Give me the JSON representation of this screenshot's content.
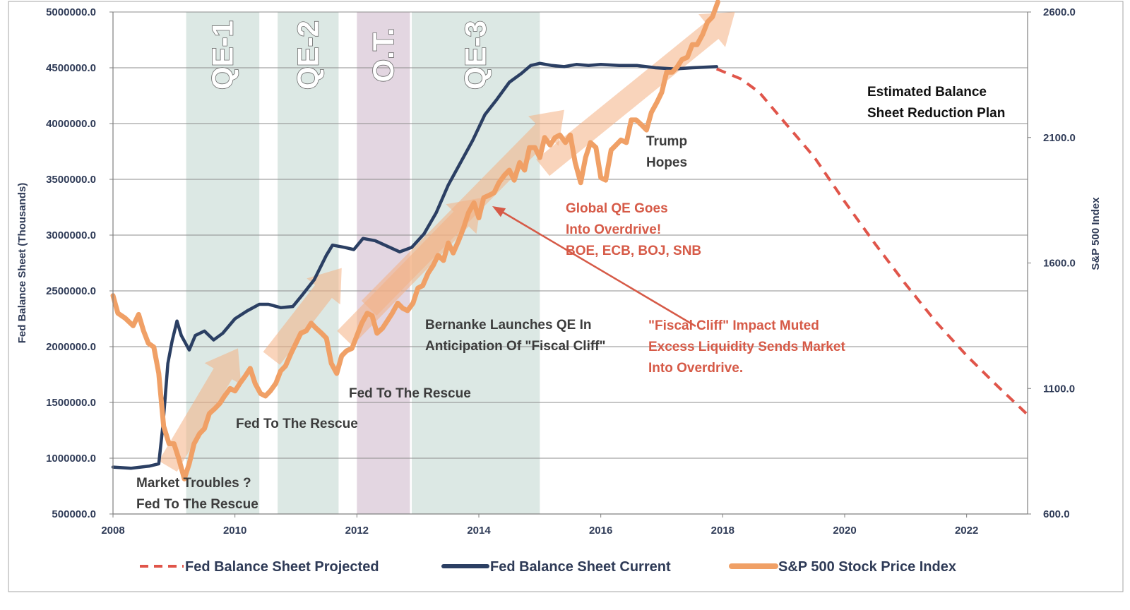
{
  "chart_data": {
    "type": "line",
    "x_range": [
      2008,
      2023
    ],
    "x_ticks": [
      "2008",
      "2010",
      "2012",
      "2014",
      "2016",
      "2018",
      "2020",
      "2022"
    ],
    "y_left": {
      "label": "Fed Balance Sheet (Thousands)",
      "range": [
        500000,
        5000000
      ],
      "ticks": [
        "500000.0",
        "1000000.0",
        "1500000.0",
        "2000000.0",
        "2500000.0",
        "3000000.0",
        "3500000.0",
        "4000000.0",
        "4500000.0",
        "5000000.0"
      ]
    },
    "y_right": {
      "label": "S&P 500 Index",
      "range": [
        600,
        2600
      ],
      "ticks": [
        "600.0",
        "1100.0",
        "1600.0",
        "2100.0",
        "2600.0"
      ]
    },
    "periods": [
      {
        "label": "QE-1",
        "start": 2009.2,
        "end": 2010.4,
        "color": "#dce8e4"
      },
      {
        "label": "QE-2",
        "start": 2010.7,
        "end": 2011.7,
        "color": "#dce8e4"
      },
      {
        "label": "O.T.",
        "start": 2012.0,
        "end": 2012.87,
        "color": "#e3d6e1"
      },
      {
        "label": "QE-3",
        "start": 2012.9,
        "end": 2015.0,
        "color": "#dce8e4"
      }
    ],
    "series": [
      {
        "name": "Fed Balance Sheet Projected",
        "axis": "left",
        "color": "#e0554a",
        "style": "dashed",
        "points": [
          [
            2017.9,
            4490000
          ],
          [
            2018.3,
            4400000
          ],
          [
            2018.6,
            4280000
          ],
          [
            2019.0,
            4020000
          ],
          [
            2019.5,
            3700000
          ],
          [
            2020.0,
            3300000
          ],
          [
            2020.5,
            2920000
          ],
          [
            2021.0,
            2560000
          ],
          [
            2021.5,
            2220000
          ],
          [
            2022.0,
            1920000
          ],
          [
            2022.5,
            1650000
          ],
          [
            2022.98,
            1400000
          ]
        ]
      },
      {
        "name": "Fed Balance Sheet Current",
        "axis": "left",
        "color": "#2b3f63",
        "style": "solid",
        "points": [
          [
            2008.0,
            920000
          ],
          [
            2008.3,
            910000
          ],
          [
            2008.6,
            930000
          ],
          [
            2008.75,
            950000
          ],
          [
            2008.82,
            1300000
          ],
          [
            2008.9,
            1850000
          ],
          [
            2008.97,
            2050000
          ],
          [
            2009.05,
            2230000
          ],
          [
            2009.12,
            2100000
          ],
          [
            2009.25,
            1970000
          ],
          [
            2009.35,
            2100000
          ],
          [
            2009.5,
            2140000
          ],
          [
            2009.65,
            2060000
          ],
          [
            2009.8,
            2120000
          ],
          [
            2010.0,
            2250000
          ],
          [
            2010.2,
            2320000
          ],
          [
            2010.4,
            2380000
          ],
          [
            2010.55,
            2380000
          ],
          [
            2010.75,
            2350000
          ],
          [
            2010.95,
            2360000
          ],
          [
            2011.1,
            2460000
          ],
          [
            2011.3,
            2600000
          ],
          [
            2011.5,
            2820000
          ],
          [
            2011.6,
            2910000
          ],
          [
            2011.8,
            2890000
          ],
          [
            2011.95,
            2870000
          ],
          [
            2012.1,
            2970000
          ],
          [
            2012.3,
            2950000
          ],
          [
            2012.5,
            2900000
          ],
          [
            2012.7,
            2850000
          ],
          [
            2012.9,
            2890000
          ],
          [
            2013.1,
            3010000
          ],
          [
            2013.3,
            3200000
          ],
          [
            2013.5,
            3450000
          ],
          [
            2013.7,
            3650000
          ],
          [
            2013.9,
            3850000
          ],
          [
            2014.1,
            4080000
          ],
          [
            2014.3,
            4220000
          ],
          [
            2014.5,
            4370000
          ],
          [
            2014.7,
            4450000
          ],
          [
            2014.85,
            4520000
          ],
          [
            2015.0,
            4540000
          ],
          [
            2015.2,
            4520000
          ],
          [
            2015.4,
            4510000
          ],
          [
            2015.6,
            4530000
          ],
          [
            2015.8,
            4520000
          ],
          [
            2016.0,
            4530000
          ],
          [
            2016.3,
            4520000
          ],
          [
            2016.6,
            4520000
          ],
          [
            2016.9,
            4500000
          ],
          [
            2017.2,
            4490000
          ],
          [
            2017.5,
            4500000
          ],
          [
            2017.9,
            4510000
          ]
        ]
      },
      {
        "name": "S&P 500 Stock Price Index",
        "axis": "right",
        "color": "#f0a066",
        "style": "solid",
        "points": [
          [
            2008.0,
            1470
          ],
          [
            2008.08,
            1400
          ],
          [
            2008.2,
            1380
          ],
          [
            2008.33,
            1350
          ],
          [
            2008.42,
            1395
          ],
          [
            2008.5,
            1330
          ],
          [
            2008.58,
            1280
          ],
          [
            2008.67,
            1265
          ],
          [
            2008.75,
            1160
          ],
          [
            2008.83,
            950
          ],
          [
            2008.92,
            880
          ],
          [
            2009.0,
            880
          ],
          [
            2009.08,
            820
          ],
          [
            2009.17,
            740
          ],
          [
            2009.25,
            800
          ],
          [
            2009.33,
            880
          ],
          [
            2009.42,
            920
          ],
          [
            2009.5,
            940
          ],
          [
            2009.58,
            1000
          ],
          [
            2009.67,
            1020
          ],
          [
            2009.75,
            1040
          ],
          [
            2009.83,
            1070
          ],
          [
            2009.92,
            1100
          ],
          [
            2010.0,
            1090
          ],
          [
            2010.08,
            1120
          ],
          [
            2010.17,
            1150
          ],
          [
            2010.25,
            1180
          ],
          [
            2010.33,
            1120
          ],
          [
            2010.42,
            1080
          ],
          [
            2010.5,
            1070
          ],
          [
            2010.58,
            1090
          ],
          [
            2010.67,
            1120
          ],
          [
            2010.75,
            1170
          ],
          [
            2010.83,
            1190
          ],
          [
            2010.92,
            1240
          ],
          [
            2011.0,
            1280
          ],
          [
            2011.08,
            1320
          ],
          [
            2011.17,
            1330
          ],
          [
            2011.25,
            1360
          ],
          [
            2011.33,
            1340
          ],
          [
            2011.42,
            1320
          ],
          [
            2011.5,
            1300
          ],
          [
            2011.58,
            1200
          ],
          [
            2011.67,
            1160
          ],
          [
            2011.75,
            1230
          ],
          [
            2011.83,
            1250
          ],
          [
            2011.92,
            1260
          ],
          [
            2012.0,
            1310
          ],
          [
            2012.08,
            1360
          ],
          [
            2012.17,
            1400
          ],
          [
            2012.25,
            1390
          ],
          [
            2012.33,
            1320
          ],
          [
            2012.42,
            1340
          ],
          [
            2012.5,
            1370
          ],
          [
            2012.58,
            1400
          ],
          [
            2012.67,
            1440
          ],
          [
            2012.75,
            1420
          ],
          [
            2012.83,
            1410
          ],
          [
            2012.92,
            1440
          ],
          [
            2013.0,
            1500
          ],
          [
            2013.08,
            1510
          ],
          [
            2013.17,
            1560
          ],
          [
            2013.25,
            1590
          ],
          [
            2013.33,
            1630
          ],
          [
            2013.42,
            1610
          ],
          [
            2013.5,
            1680
          ],
          [
            2013.58,
            1640
          ],
          [
            2013.67,
            1690
          ],
          [
            2013.75,
            1740
          ],
          [
            2013.83,
            1800
          ],
          [
            2013.92,
            1840
          ],
          [
            2014.0,
            1780
          ],
          [
            2014.08,
            1860
          ],
          [
            2014.17,
            1870
          ],
          [
            2014.25,
            1880
          ],
          [
            2014.33,
            1920
          ],
          [
            2014.42,
            1950
          ],
          [
            2014.5,
            1970
          ],
          [
            2014.58,
            1930
          ],
          [
            2014.67,
            2000
          ],
          [
            2014.75,
            1970
          ],
          [
            2014.83,
            2060
          ],
          [
            2014.92,
            2060
          ],
          [
            2015.0,
            2020
          ],
          [
            2015.08,
            2100
          ],
          [
            2015.17,
            2070
          ],
          [
            2015.25,
            2100
          ],
          [
            2015.33,
            2110
          ],
          [
            2015.42,
            2080
          ],
          [
            2015.5,
            2110
          ],
          [
            2015.58,
            2000
          ],
          [
            2015.67,
            1920
          ],
          [
            2015.75,
            2020
          ],
          [
            2015.83,
            2080
          ],
          [
            2015.92,
            2060
          ],
          [
            2016.0,
            1940
          ],
          [
            2016.08,
            1930
          ],
          [
            2016.17,
            2050
          ],
          [
            2016.25,
            2070
          ],
          [
            2016.33,
            2090
          ],
          [
            2016.42,
            2080
          ],
          [
            2016.5,
            2170
          ],
          [
            2016.58,
            2170
          ],
          [
            2016.67,
            2150
          ],
          [
            2016.75,
            2130
          ],
          [
            2016.83,
            2200
          ],
          [
            2016.92,
            2240
          ],
          [
            2017.0,
            2280
          ],
          [
            2017.08,
            2360
          ],
          [
            2017.17,
            2360
          ],
          [
            2017.25,
            2380
          ],
          [
            2017.33,
            2410
          ],
          [
            2017.42,
            2420
          ],
          [
            2017.5,
            2470
          ],
          [
            2017.58,
            2470
          ],
          [
            2017.67,
            2510
          ],
          [
            2017.75,
            2560
          ],
          [
            2017.83,
            2580
          ],
          [
            2017.92,
            2640
          ]
        ]
      }
    ],
    "trend_arrows": [
      {
        "from": [
          2008.9,
          790
        ],
        "to": [
          2010.05,
          1260
        ]
      },
      {
        "from": [
          2010.6,
          1220
        ],
        "to": [
          2011.75,
          1580
        ]
      },
      {
        "from": [
          2011.8,
          1300
        ],
        "to": [
          2014.05,
          1860
        ]
      },
      {
        "from": [
          2012.2,
          1420
        ],
        "to": [
          2015.4,
          2210
        ]
      },
      {
        "from": [
          2015.05,
          1980
        ],
        "to": [
          2018.2,
          2600
        ]
      }
    ],
    "annotations": [
      {
        "key": "market_troubles",
        "lines": [
          "Market Troubles ?",
          "Fed To The Rescue"
        ]
      },
      {
        "key": "fed_rescue_1",
        "lines": [
          "Fed To The Rescue"
        ]
      },
      {
        "key": "fed_rescue_2",
        "lines": [
          "Fed To The Rescue"
        ]
      },
      {
        "key": "bernanke",
        "lines": [
          "Bernanke Launches QE In",
          "Anticipation Of \"Fiscal Cliff\""
        ]
      },
      {
        "key": "global_qe",
        "lines": [
          "Global QE Goes",
          "Into Overdrive!",
          "BOE, ECB, BOJ, SNB"
        ]
      },
      {
        "key": "fiscal_cliff",
        "lines": [
          "\"Fiscal Cliff\" Impact Muted",
          "Excess Liquidity Sends Market",
          "Into Overdrive."
        ]
      },
      {
        "key": "trump",
        "lines": [
          "Trump",
          "Hopes"
        ]
      },
      {
        "key": "reduction_plan",
        "lines": [
          "Estimated Balance",
          "Sheet Reduction Plan"
        ]
      }
    ],
    "legend": [
      "Fed Balance Sheet Projected",
      "Fed Balance Sheet Current",
      "S&P 500 Stock Price Index"
    ]
  }
}
